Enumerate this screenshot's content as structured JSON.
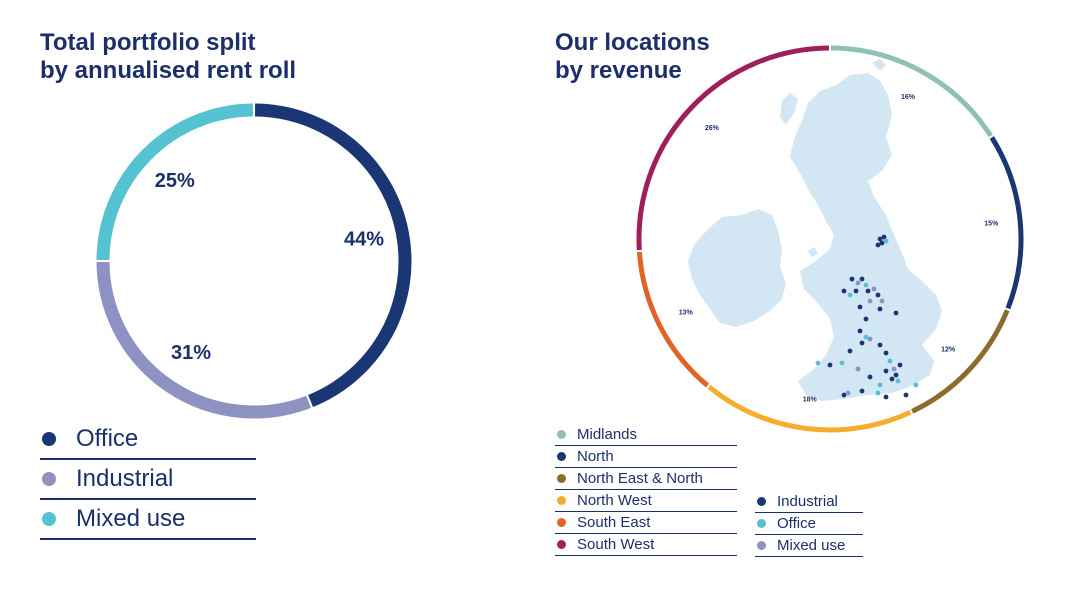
{
  "left": {
    "title_line1": "Total portfolio split",
    "title_line2": "by annualised rent roll"
  },
  "right": {
    "title_line1": "Our locations",
    "title_line2": "by revenue"
  },
  "chart_data": [
    {
      "type": "pie",
      "donut": true,
      "title": "Total portfolio split by annualised rent roll",
      "categories": [
        "Office",
        "Industrial",
        "Mixed use"
      ],
      "values": [
        44,
        31,
        25
      ],
      "labels": [
        "44%",
        "31%",
        "25%"
      ],
      "colors": [
        "#1b3674",
        "#8e92c2",
        "#55c2d2"
      ],
      "legend": "bottom-left"
    },
    {
      "type": "pie",
      "donut": true,
      "title": "Our locations by revenue",
      "categories": [
        "Midlands",
        "North",
        "North East & North",
        "North West",
        "South East",
        "South West"
      ],
      "values": [
        16,
        15,
        12,
        18,
        13,
        26
      ],
      "labels": [
        "16%",
        "15%",
        "12%",
        "18%",
        "13%",
        "26%"
      ],
      "colors": [
        "#8fc1b3",
        "#1b3674",
        "#8d6a2e",
        "#f5ad2d",
        "#e06428",
        "#a01e5a"
      ],
      "legend": "bottom-left",
      "map_point_types": [
        "Industrial",
        "Office",
        "Mixed use"
      ],
      "map_point_colors": [
        "#1b3674",
        "#55c2d2",
        "#8e92c2"
      ]
    }
  ]
}
